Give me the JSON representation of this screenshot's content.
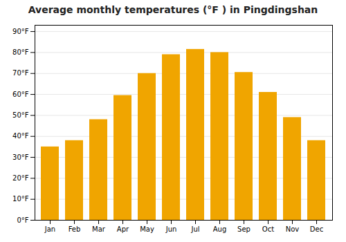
{
  "chart_data": {
    "type": "bar",
    "title": "Average monthly temperatures (°F ) in Pingdingshan",
    "categories": [
      "Jan",
      "Feb",
      "Mar",
      "Apr",
      "May",
      "Jun",
      "Jul",
      "Aug",
      "Sep",
      "Oct",
      "Nov",
      "Dec"
    ],
    "values": [
      35,
      38,
      48,
      59.5,
      70,
      79,
      81.5,
      80,
      70.5,
      61,
      49,
      38
    ],
    "color": "#F0A500",
    "ylim": [
      0,
      93
    ],
    "yticks": [
      {
        "value": 0,
        "label": "0°F"
      },
      {
        "value": 10,
        "label": "10°F"
      },
      {
        "value": 20,
        "label": "20°F"
      },
      {
        "value": 30,
        "label": "30°F"
      },
      {
        "value": 40,
        "label": "40°F"
      },
      {
        "value": 50,
        "label": "50°F"
      },
      {
        "value": 60,
        "label": "60°F"
      },
      {
        "value": 70,
        "label": "70°F"
      },
      {
        "value": 80,
        "label": "80°F"
      },
      {
        "value": 90,
        "label": "90°F"
      }
    ],
    "grid": true
  }
}
